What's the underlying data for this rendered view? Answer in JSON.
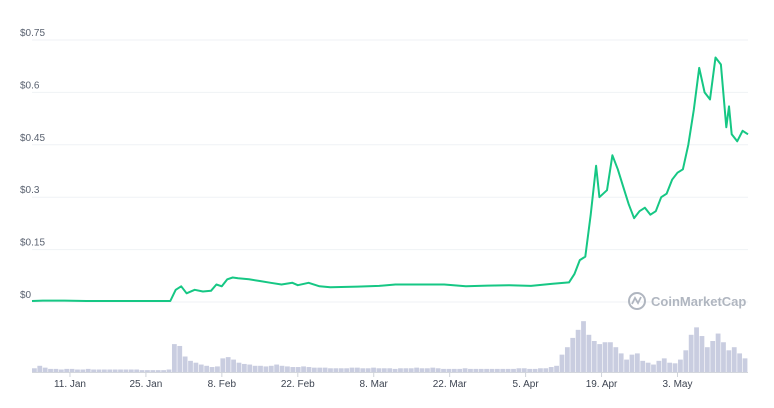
{
  "chart_data": {
    "type": "line",
    "title": "",
    "xlabel": "",
    "ylabel": "",
    "ylim": [
      0,
      0.75
    ],
    "y_ticks": [
      "$0",
      "$0.15",
      "$0.3",
      "$0.45",
      "$0.6",
      "$0.75"
    ],
    "y_tick_values": [
      0,
      0.15,
      0.3,
      0.45,
      0.6,
      0.75
    ],
    "x_ticks": [
      "11. Jan",
      "25. Jan",
      "8. Feb",
      "22. Feb",
      "8. Mar",
      "22. Mar",
      "5. Apr",
      "19. Apr",
      "3. May"
    ],
    "x_tick_days": [
      7,
      21,
      35,
      49,
      63,
      77,
      91,
      105,
      119
    ],
    "x_range_days": [
      0,
      132
    ],
    "x_origin_date": "2021-01-04",
    "grid": true,
    "watermark": "CoinMarketCap",
    "colors": {
      "line": "#16c784",
      "volume": "#c9cde0",
      "grid": "#eff2f5"
    },
    "series": [
      {
        "kind": "price",
        "points": [
          [
            0,
            0.003
          ],
          [
            2,
            0.004
          ],
          [
            6,
            0.004
          ],
          [
            10,
            0.003
          ],
          [
            14,
            0.003
          ],
          [
            18,
            0.003
          ],
          [
            22,
            0.003
          ],
          [
            25.5,
            0.003
          ],
          [
            26.5,
            0.035
          ],
          [
            27.5,
            0.045
          ],
          [
            28.5,
            0.025
          ],
          [
            30,
            0.035
          ],
          [
            31.5,
            0.03
          ],
          [
            33,
            0.032
          ],
          [
            34,
            0.05
          ],
          [
            35,
            0.045
          ],
          [
            36,
            0.065
          ],
          [
            37,
            0.07
          ],
          [
            38,
            0.068
          ],
          [
            40,
            0.065
          ],
          [
            42,
            0.06
          ],
          [
            44,
            0.055
          ],
          [
            46,
            0.05
          ],
          [
            48,
            0.055
          ],
          [
            49,
            0.048
          ],
          [
            51,
            0.055
          ],
          [
            53,
            0.045
          ],
          [
            55,
            0.042
          ],
          [
            60,
            0.044
          ],
          [
            64,
            0.046
          ],
          [
            67,
            0.05
          ],
          [
            72,
            0.05
          ],
          [
            76,
            0.05
          ],
          [
            80,
            0.045
          ],
          [
            84,
            0.047
          ],
          [
            88,
            0.048
          ],
          [
            92,
            0.046
          ],
          [
            96,
            0.052
          ],
          [
            99,
            0.056
          ],
          [
            100,
            0.08
          ],
          [
            101,
            0.12
          ],
          [
            102,
            0.13
          ],
          [
            103,
            0.25
          ],
          [
            104,
            0.39
          ],
          [
            104.6,
            0.3
          ],
          [
            106,
            0.32
          ],
          [
            107,
            0.42
          ],
          [
            108,
            0.38
          ],
          [
            109,
            0.33
          ],
          [
            110,
            0.28
          ],
          [
            111,
            0.24
          ],
          [
            112,
            0.26
          ],
          [
            113,
            0.27
          ],
          [
            114,
            0.25
          ],
          [
            115,
            0.26
          ],
          [
            116,
            0.3
          ],
          [
            117,
            0.31
          ],
          [
            118,
            0.35
          ],
          [
            119,
            0.37
          ],
          [
            120,
            0.38
          ],
          [
            121,
            0.45
          ],
          [
            122,
            0.55
          ],
          [
            123,
            0.67
          ],
          [
            124,
            0.6
          ],
          [
            125,
            0.58
          ],
          [
            126,
            0.7
          ],
          [
            127,
            0.68
          ],
          [
            128,
            0.5
          ],
          [
            128.5,
            0.56
          ],
          [
            129,
            0.48
          ],
          [
            130,
            0.46
          ],
          [
            131,
            0.49
          ],
          [
            132,
            0.48
          ]
        ]
      },
      {
        "kind": "volume",
        "relative_height": [
          0.06,
          0.1,
          0.07,
          0.05,
          0.05,
          0.04,
          0.05,
          0.05,
          0.04,
          0.04,
          0.05,
          0.04,
          0.04,
          0.04,
          0.04,
          0.04,
          0.04,
          0.04,
          0.04,
          0.04,
          0.03,
          0.03,
          0.03,
          0.03,
          0.03,
          0.04,
          0.45,
          0.42,
          0.25,
          0.18,
          0.15,
          0.12,
          0.1,
          0.08,
          0.09,
          0.22,
          0.24,
          0.2,
          0.15,
          0.13,
          0.12,
          0.1,
          0.1,
          0.09,
          0.1,
          0.12,
          0.1,
          0.09,
          0.08,
          0.08,
          0.09,
          0.08,
          0.07,
          0.07,
          0.07,
          0.06,
          0.06,
          0.06,
          0.06,
          0.07,
          0.07,
          0.06,
          0.06,
          0.07,
          0.06,
          0.06,
          0.06,
          0.05,
          0.06,
          0.06,
          0.06,
          0.07,
          0.06,
          0.06,
          0.07,
          0.06,
          0.05,
          0.05,
          0.05,
          0.05,
          0.06,
          0.05,
          0.05,
          0.05,
          0.05,
          0.05,
          0.05,
          0.05,
          0.05,
          0.05,
          0.06,
          0.06,
          0.05,
          0.05,
          0.06,
          0.06,
          0.08,
          0.1,
          0.28,
          0.4,
          0.55,
          0.68,
          0.82,
          0.6,
          0.5,
          0.45,
          0.48,
          0.48,
          0.4,
          0.3,
          0.2,
          0.28,
          0.3,
          0.18,
          0.15,
          0.12,
          0.18,
          0.22,
          0.15,
          0.14,
          0.2,
          0.35,
          0.6,
          0.72,
          0.58,
          0.4,
          0.5,
          0.62,
          0.48,
          0.35,
          0.4,
          0.3,
          0.22
        ]
      }
    ]
  }
}
